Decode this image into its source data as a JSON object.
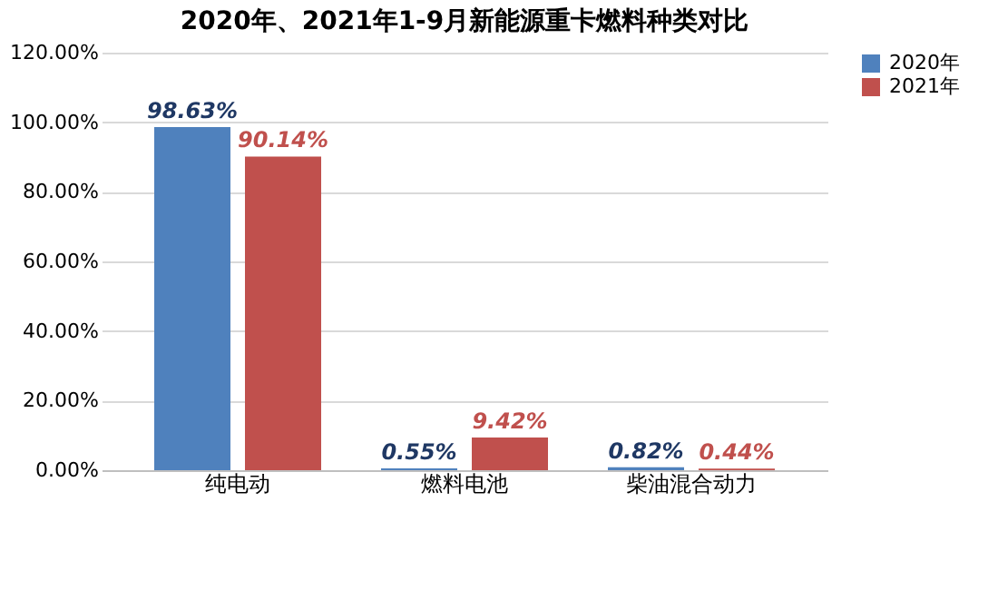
{
  "chart_data": {
    "type": "bar",
    "title": "2020年、2021年1-9月新能源重卡燃料种类对比",
    "categories": [
      "纯电动",
      "燃料电池",
      "柴油混合动力"
    ],
    "series": [
      {
        "name": "2020年",
        "color": "#4f81bd",
        "values": [
          98.63,
          0.55,
          0.82
        ],
        "value_labels": [
          "98.63%",
          "0.55%",
          "0.82%"
        ]
      },
      {
        "name": "2021年",
        "color": "#c0504d",
        "values": [
          90.14,
          9.42,
          0.44
        ],
        "value_labels": [
          "90.14%",
          "9.42%",
          "0.44%"
        ]
      }
    ],
    "ylim": [
      0,
      120
    ],
    "yticks": [
      {
        "value": 0,
        "label": "0.00%"
      },
      {
        "value": 20,
        "label": "20.00%"
      },
      {
        "value": 40,
        "label": "40.00%"
      },
      {
        "value": 60,
        "label": "60.00%"
      },
      {
        "value": 80,
        "label": "80.00%"
      },
      {
        "value": 100,
        "label": "100.00%"
      },
      {
        "value": 120,
        "label": "120.00%"
      }
    ],
    "grid": "y",
    "legend": "right"
  }
}
